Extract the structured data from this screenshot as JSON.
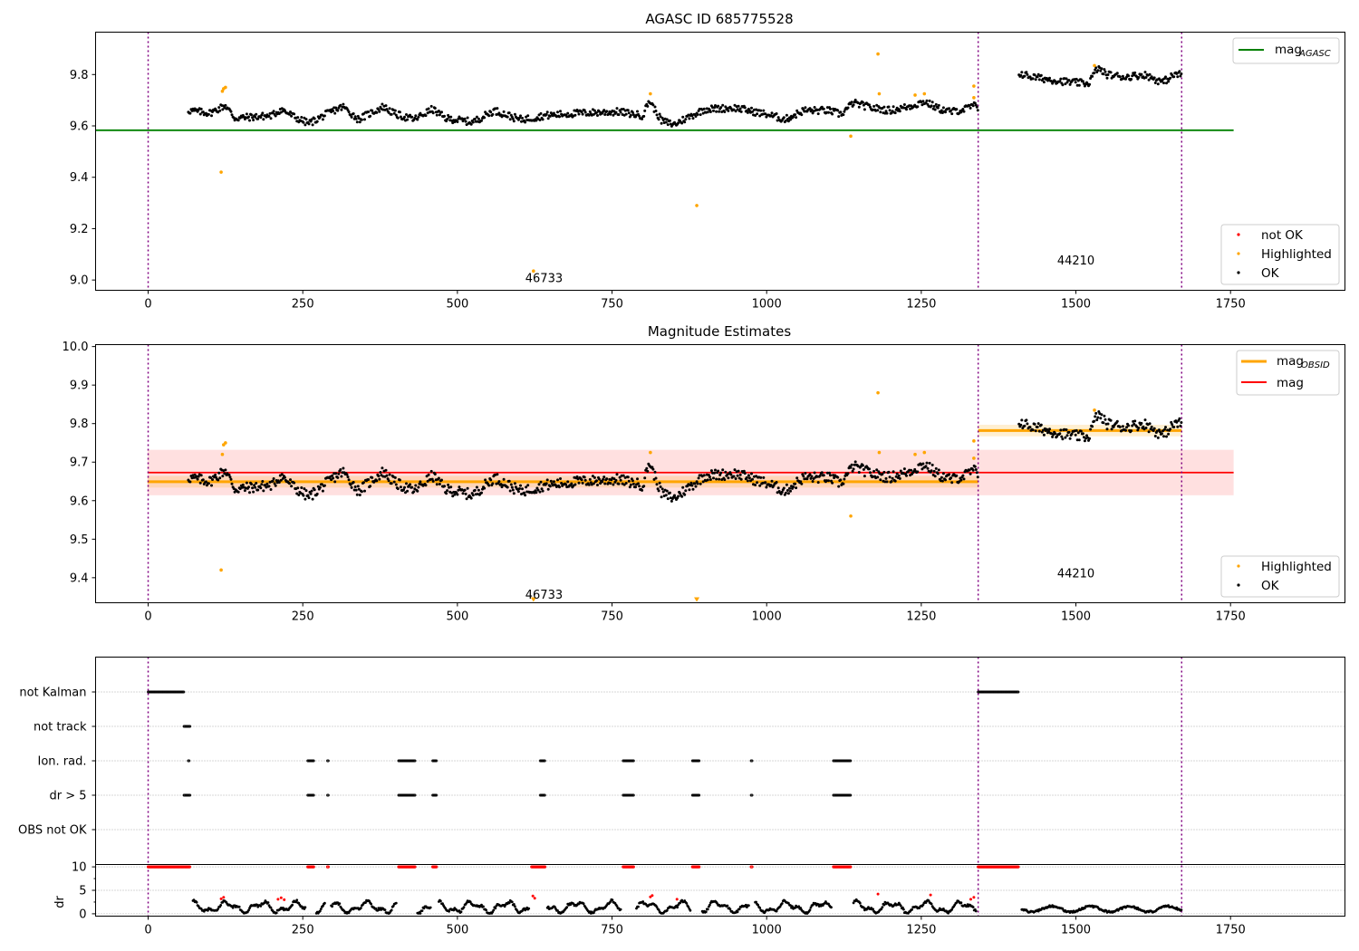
{
  "chart_data": [
    {
      "type": "scatter",
      "title": "AGASC ID 685775528",
      "xlim": [
        -85,
        1935
      ],
      "ylim": [
        8.96,
        9.965
      ],
      "xticks": [
        0,
        250,
        500,
        750,
        1000,
        1250,
        1500,
        1750
      ],
      "yticks": [
        9.0,
        9.2,
        9.4,
        9.6,
        9.8
      ],
      "ytick_format": 1,
      "vlines": [
        0,
        1342,
        1671
      ],
      "segment_labels": [
        {
          "text": "46733",
          "x": 640,
          "y": 9.005
        },
        {
          "text": "44210",
          "x": 1500,
          "y": 9.075
        }
      ],
      "lines": [
        {
          "name": "mag_AGASC",
          "label_main": "mag",
          "label_sub": "AGASC",
          "color": "#008000",
          "y": 9.583,
          "x": [
            -85,
            1755
          ]
        }
      ],
      "ok_segments": [
        {
          "x0": 65,
          "x1": 1342,
          "anchors": [
            [
              65,
              9.66
            ],
            [
              100,
              9.65
            ],
            [
              125,
              9.68
            ],
            [
              140,
              9.63
            ],
            [
              200,
              9.64
            ],
            [
              215,
              9.665
            ],
            [
              240,
              9.63
            ],
            [
              260,
              9.61
            ],
            [
              300,
              9.66
            ],
            [
              315,
              9.675
            ],
            [
              340,
              9.625
            ],
            [
              380,
              9.675
            ],
            [
              400,
              9.645
            ],
            [
              430,
              9.625
            ],
            [
              460,
              9.665
            ],
            [
              480,
              9.63
            ],
            [
              525,
              9.615
            ],
            [
              560,
              9.66
            ],
            [
              600,
              9.625
            ],
            [
              620,
              9.63
            ],
            [
              640,
              9.64
            ],
            [
              700,
              9.65
            ],
            [
              760,
              9.655
            ],
            [
              800,
              9.64
            ],
            [
              810,
              9.7
            ],
            [
              830,
              9.62
            ],
            [
              850,
              9.605
            ],
            [
              870,
              9.63
            ],
            [
              900,
              9.665
            ],
            [
              950,
              9.67
            ],
            [
              1000,
              9.645
            ],
            [
              1030,
              9.625
            ],
            [
              1060,
              9.66
            ],
            [
              1100,
              9.66
            ],
            [
              1120,
              9.645
            ],
            [
              1140,
              9.69
            ],
            [
              1170,
              9.67
            ],
            [
              1200,
              9.66
            ],
            [
              1230,
              9.675
            ],
            [
              1255,
              9.695
            ],
            [
              1280,
              9.665
            ],
            [
              1300,
              9.655
            ],
            [
              1320,
              9.665
            ],
            [
              1335,
              9.68
            ],
            [
              1342,
              9.665
            ]
          ]
        },
        {
          "x0": 1408,
          "x1": 1671,
          "anchors": [
            [
              1408,
              9.805
            ],
            [
              1430,
              9.79
            ],
            [
              1460,
              9.78
            ],
            [
              1490,
              9.77
            ],
            [
              1520,
              9.765
            ],
            [
              1535,
              9.825
            ],
            [
              1550,
              9.8
            ],
            [
              1580,
              9.79
            ],
            [
              1610,
              9.8
            ],
            [
              1640,
              9.77
            ],
            [
              1660,
              9.8
            ],
            [
              1671,
              9.8
            ]
          ]
        }
      ],
      "highlighted": [
        [
          118,
          9.42
        ],
        [
          120,
          9.735
        ],
        [
          122,
          9.745
        ],
        [
          125,
          9.75
        ],
        [
          623,
          9.035
        ],
        [
          812,
          9.725
        ],
        [
          887,
          9.29
        ],
        [
          1136,
          9.56
        ],
        [
          1180,
          9.88
        ],
        [
          1182,
          9.725
        ],
        [
          1240,
          9.72
        ],
        [
          1255,
          9.725
        ],
        [
          1335,
          9.755
        ],
        [
          1335,
          9.71
        ],
        [
          1530,
          9.835
        ]
      ],
      "legend_top": [
        {
          "label": "mag",
          "sub": "AGASC",
          "color": "#008000"
        }
      ],
      "legend_bottom": [
        {
          "label": "not OK",
          "color": "#ff0000"
        },
        {
          "label": "Highlighted",
          "color": "#ffa500"
        },
        {
          "label": "OK",
          "color": "#000000"
        }
      ]
    },
    {
      "type": "scatter",
      "title": "Magnitude Estimates",
      "xlim": [
        -85,
        1935
      ],
      "ylim": [
        9.335,
        10.005
      ],
      "xticks": [
        0,
        250,
        500,
        750,
        1000,
        1250,
        1500,
        1750
      ],
      "yticks": [
        9.4,
        9.5,
        9.6,
        9.7,
        9.8,
        9.9,
        10.0
      ],
      "ytick_format": 1,
      "vlines": [
        0,
        1342,
        1671
      ],
      "segment_labels": [
        {
          "text": "46733",
          "x": 640,
          "y": 9.355
        },
        {
          "text": "44210",
          "x": 1500,
          "y": 9.41
        }
      ],
      "bands": [
        {
          "x0": -1,
          "x1": 1755,
          "y0": 9.614,
          "y1": 9.732,
          "color": "#ff0000",
          "opacity": 0.12
        },
        {
          "x0": -1,
          "x1": 1342,
          "y0": 9.634,
          "y1": 9.664,
          "color": "#ffa500",
          "opacity": 0.18
        },
        {
          "x0": 1342,
          "x1": 1671,
          "y0": 9.767,
          "y1": 9.797,
          "color": "#ffa500",
          "opacity": 0.18
        }
      ],
      "lines": [
        {
          "name": "mag",
          "color": "#ff0000",
          "y": 9.673,
          "x": [
            -1,
            1755
          ],
          "width": 1.8
        },
        {
          "name": "mag_OBSID_46733",
          "color": "#ffa500",
          "y": 9.649,
          "x": [
            -1,
            1342
          ],
          "width": 3
        },
        {
          "name": "mag_OBSID_44210",
          "color": "#ffa500",
          "y": 9.782,
          "x": [
            1342,
            1671
          ],
          "width": 3
        }
      ],
      "ok_segments_ref": 0,
      "highlighted": [
        [
          118,
          9.42
        ],
        [
          120,
          9.72
        ],
        [
          122,
          9.745
        ],
        [
          125,
          9.75
        ],
        [
          812,
          9.725
        ],
        [
          1136,
          9.56
        ],
        [
          1180,
          9.88
        ],
        [
          1182,
          9.725
        ],
        [
          1240,
          9.72
        ],
        [
          1255,
          9.725
        ],
        [
          1335,
          9.755
        ],
        [
          1335,
          9.71
        ],
        [
          1530,
          9.835
        ]
      ],
      "highlighted_offscale": [
        623,
        887
      ],
      "legend_top": [
        {
          "label": "mag",
          "sub": "OBSID",
          "color": "#ffa500",
          "width": 3
        },
        {
          "label": "mag",
          "sub": "",
          "color": "#ff0000",
          "width": 2
        }
      ],
      "legend_bottom": [
        {
          "label": "Highlighted",
          "color": "#ffa500"
        },
        {
          "label": "OK",
          "color": "#000000"
        }
      ]
    },
    {
      "type": "scatter",
      "title": "",
      "xlim": [
        -85,
        1935
      ],
      "xticks": [
        0,
        250,
        500,
        750,
        1000,
        1250,
        1500,
        1750
      ],
      "vlines": [
        0,
        1342,
        1671
      ],
      "flag_rows": [
        "not Kalman",
        "not track",
        "Ion. rad.",
        "dr > 5",
        "OBS not OK"
      ],
      "flag_ranges": {
        "not Kalman": [
          [
            0,
            58
          ],
          [
            1342,
            1408
          ]
        ],
        "not track": [
          [
            58,
            68
          ]
        ],
        "Ion. rad.": [
          [
            65,
            67
          ],
          [
            258,
            268
          ],
          [
            290,
            292
          ],
          [
            405,
            432
          ],
          [
            460,
            466
          ],
          [
            634,
            642
          ],
          [
            768,
            786
          ],
          [
            880,
            892
          ],
          [
            975,
            977
          ],
          [
            1108,
            1136
          ]
        ],
        "dr > 5": [
          [
            58,
            68
          ],
          [
            258,
            268
          ],
          [
            290,
            292
          ],
          [
            405,
            432
          ],
          [
            460,
            466
          ],
          [
            634,
            642
          ],
          [
            768,
            786
          ],
          [
            880,
            892
          ],
          [
            975,
            977
          ],
          [
            1108,
            1136
          ]
        ],
        "OBS not OK": []
      },
      "dr": {
        "ylabel": "dr",
        "yticks": [
          0,
          5,
          10
        ],
        "ylim": [
          -0.5,
          10.5
        ],
        "clipped_ranges": [
          [
            0,
            68
          ],
          [
            258,
            268
          ],
          [
            290,
            292
          ],
          [
            405,
            432
          ],
          [
            460,
            466
          ],
          [
            620,
            642
          ],
          [
            768,
            786
          ],
          [
            880,
            892
          ],
          [
            975,
            977
          ],
          [
            1108,
            1136
          ],
          [
            1342,
            1408
          ]
        ],
        "red_points": [
          [
            118,
            3.2
          ],
          [
            122,
            3.5
          ],
          [
            210,
            3.1
          ],
          [
            215,
            3.4
          ],
          [
            220,
            3.0
          ],
          [
            622,
            3.8
          ],
          [
            625,
            3.3
          ],
          [
            812,
            3.6
          ],
          [
            815,
            3.9
          ],
          [
            855,
            3.1
          ],
          [
            1180,
            4.2
          ],
          [
            1265,
            4.0
          ],
          [
            1330,
            3.1
          ],
          [
            1335,
            3.5
          ]
        ]
      }
    }
  ]
}
